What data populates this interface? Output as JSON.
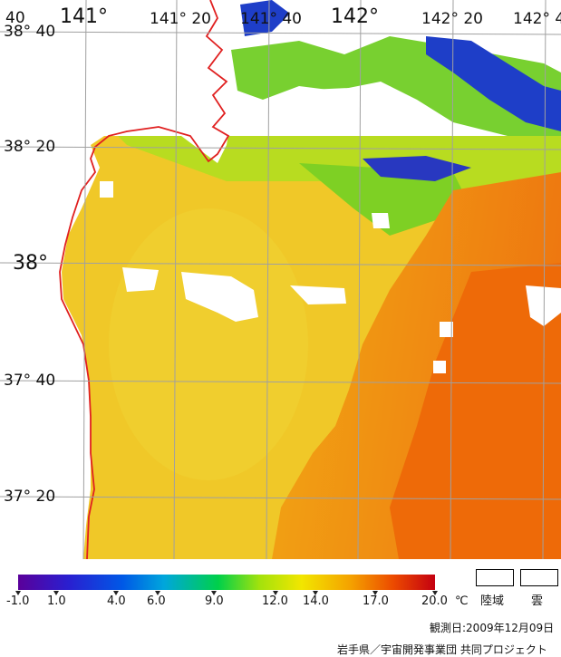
{
  "map": {
    "longitude_labels": [
      "141°",
      "141° 20",
      "141° 40",
      "142°",
      "142° 20",
      "142° 4"
    ],
    "latitude_labels": [
      "38° 40",
      "38° 20",
      "38°",
      "37° 40",
      "37° 20"
    ],
    "corner_label": "40"
  },
  "legend": {
    "ticks": [
      "-1.0",
      "1.0",
      "4.0",
      "6.0",
      "9.0",
      "12.0",
      "14.0",
      "17.0",
      "20.0"
    ],
    "unit": "℃",
    "land_label": "陸域",
    "cloud_label": "雲",
    "colors": [
      "#5a009a",
      "#2a1fd0",
      "#0058e6",
      "#00a6dc",
      "#00d04a",
      "#a4e20c",
      "#f2e600",
      "#f4a000",
      "#ec4a00",
      "#c40010"
    ]
  },
  "footer": {
    "observation_date": "観測日:2009年12月09日",
    "credit": "岩手県／宇宙開発事業団  共同プロジェクト"
  }
}
